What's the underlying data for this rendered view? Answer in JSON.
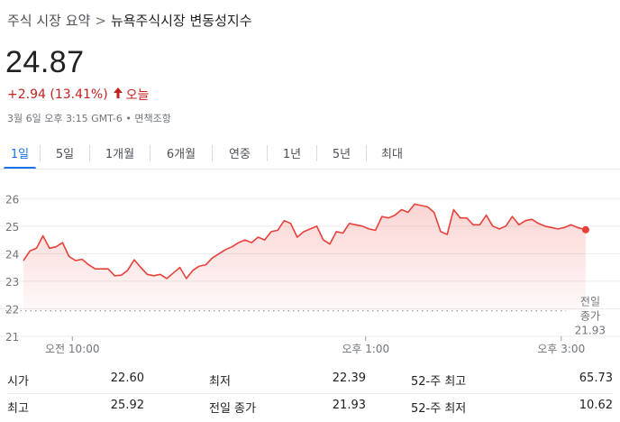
{
  "breadcrumb": {
    "root": "주식 시장 요약",
    "separator": ">",
    "current": "뉴욕주식시장 변동성지수"
  },
  "quote": {
    "price": "24.87",
    "change": "+2.94 (13.41%)",
    "direction_icon": "arrow-up-icon",
    "period": "오늘",
    "timestamp": "3월 6일 오후 3:15 GMT-6 • 면책조항",
    "change_color": "#c5221f"
  },
  "tabs": [
    {
      "label": "1일",
      "active": true
    },
    {
      "label": "5일",
      "active": false
    },
    {
      "label": "1개월",
      "active": false
    },
    {
      "label": "6개월",
      "active": false
    },
    {
      "label": "연중",
      "active": false
    },
    {
      "label": "1년",
      "active": false
    },
    {
      "label": "5년",
      "active": false
    },
    {
      "label": "최대",
      "active": false
    }
  ],
  "chart_data": {
    "type": "area",
    "y_ticks": [
      "26",
      "25",
      "24",
      "23",
      "22",
      "21"
    ],
    "ylim": [
      21,
      26.5
    ],
    "x_ticks": [
      "오전 10:00",
      "오후 1:00",
      "오후 3:00"
    ],
    "x_tick_positions": [
      30,
      210,
      330
    ],
    "x_range": [
      0,
      355
    ],
    "previous_close": {
      "label_line1": "전일",
      "label_line2": "종가",
      "value": "21.93",
      "y": 21.93
    },
    "line_color": "#e8413a",
    "fill_color": "#fce8e6",
    "grid": true,
    "x": [
      0,
      4,
      8,
      12,
      16,
      20,
      24,
      28,
      32,
      36,
      40,
      44,
      48,
      52,
      56,
      60,
      64,
      68,
      72,
      76,
      80,
      84,
      88,
      92,
      96,
      100,
      104,
      108,
      112,
      116,
      120,
      124,
      128,
      132,
      136,
      140,
      144,
      148,
      152,
      156,
      160,
      164,
      168,
      172,
      176,
      180,
      184,
      188,
      192,
      196,
      200,
      204,
      208,
      212,
      216,
      220,
      224,
      228,
      232,
      236,
      240,
      244,
      248,
      252,
      256,
      260,
      264,
      268,
      272,
      276,
      280,
      284,
      288,
      292,
      296,
      300,
      304,
      308,
      312,
      316,
      320,
      324,
      328,
      332,
      336,
      340,
      345
    ],
    "values": [
      23.75,
      24.1,
      24.2,
      24.65,
      24.2,
      24.25,
      24.4,
      23.9,
      23.75,
      23.8,
      23.6,
      23.45,
      23.45,
      23.45,
      23.2,
      23.22,
      23.4,
      23.78,
      23.5,
      23.25,
      23.2,
      23.25,
      23.1,
      23.3,
      23.5,
      23.1,
      23.4,
      23.55,
      23.6,
      23.85,
      24.0,
      24.15,
      24.25,
      24.4,
      24.5,
      24.4,
      24.6,
      24.5,
      24.8,
      24.85,
      25.2,
      25.1,
      24.6,
      24.8,
      24.9,
      25.0,
      24.5,
      24.35,
      24.8,
      24.75,
      25.1,
      25.05,
      25.0,
      24.9,
      24.85,
      25.35,
      25.3,
      25.4,
      25.6,
      25.5,
      25.8,
      25.75,
      25.7,
      25.5,
      24.8,
      24.7,
      25.6,
      25.3,
      25.3,
      25.05,
      25.05,
      25.4,
      25.0,
      24.9,
      25.0,
      25.35,
      25.05,
      25.2,
      25.25,
      25.1,
      25.0,
      24.95,
      24.9,
      24.95,
      25.05,
      24.95,
      24.87
    ]
  },
  "stats": [
    [
      {
        "label": "시가",
        "value": "22.60"
      },
      {
        "label": "최저",
        "value": "22.39"
      },
      {
        "label": "52-주 최고",
        "value": "65.73"
      }
    ],
    [
      {
        "label": "최고",
        "value": "25.92"
      },
      {
        "label": "전일 종가",
        "value": "21.93"
      },
      {
        "label": "52-주 최저",
        "value": "10.62"
      }
    ]
  ]
}
